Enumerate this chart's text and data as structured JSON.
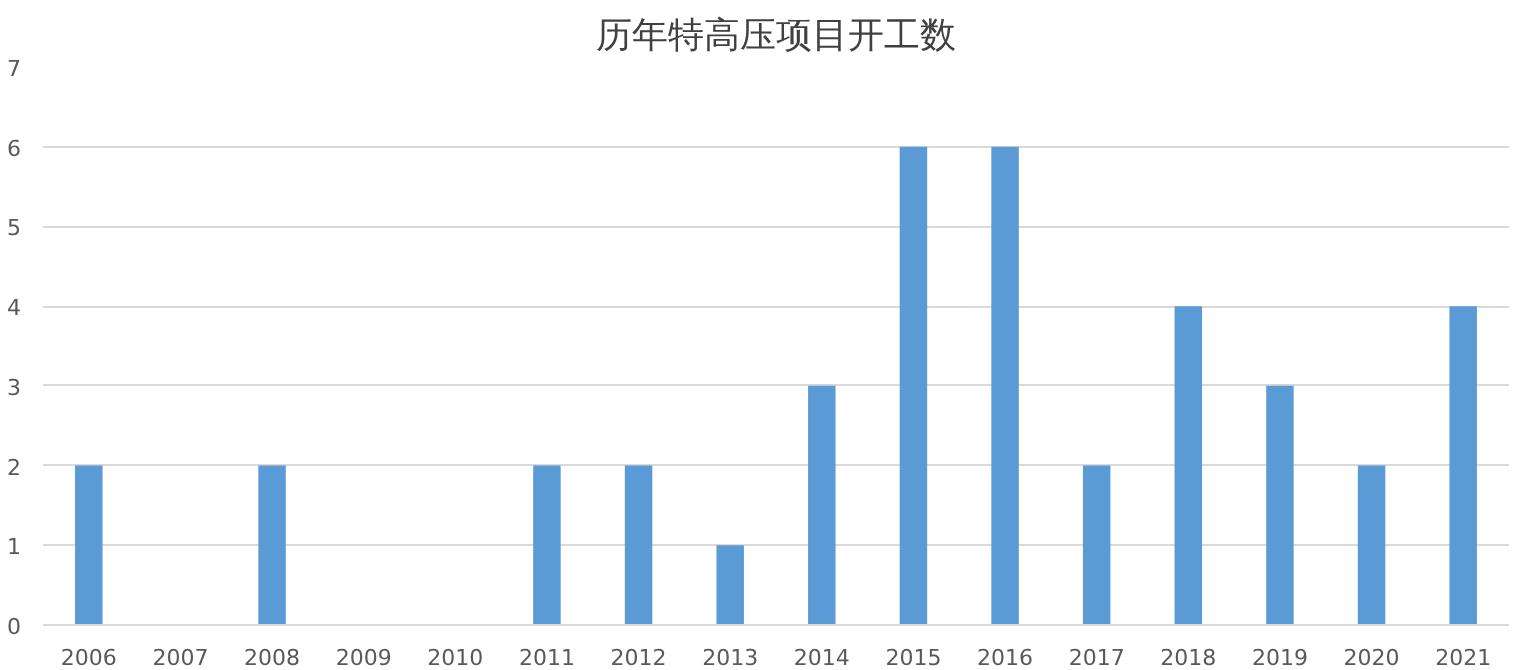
{
  "chart_data": {
    "type": "bar",
    "title": "历年特高压项目开工数",
    "categories": [
      "2006",
      "2007",
      "2008",
      "2009",
      "2010",
      "2011",
      "2012",
      "2013",
      "2014",
      "2015",
      "2016",
      "2017",
      "2018",
      "2019",
      "2020",
      "2021"
    ],
    "values": [
      2,
      0,
      2,
      0,
      0,
      2,
      2,
      1,
      3,
      6,
      6,
      2,
      4,
      3,
      2,
      4
    ],
    "color": "#5b9bd5",
    "ylim": [
      0,
      7
    ],
    "yticks": [
      0,
      1,
      2,
      3,
      4,
      5,
      6,
      7
    ],
    "grid": "y"
  }
}
